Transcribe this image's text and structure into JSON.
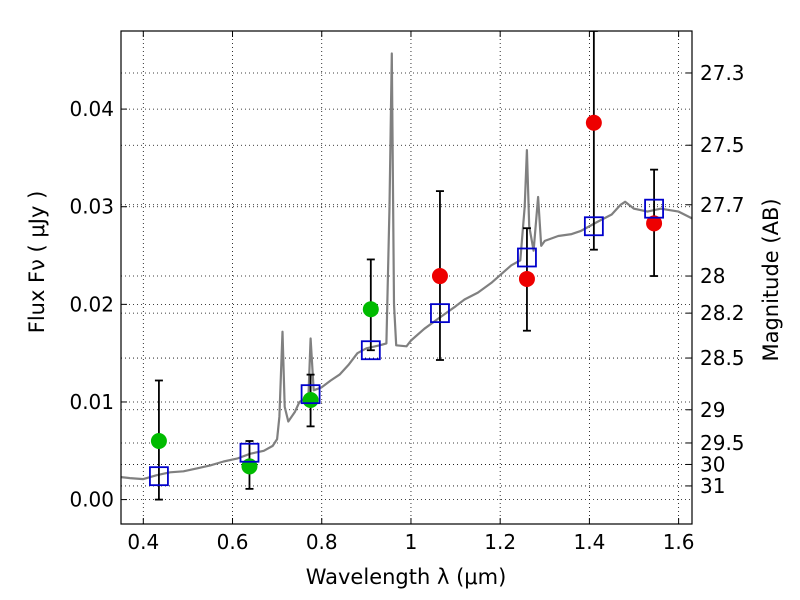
{
  "chart_data": {
    "type": "scatter",
    "xlabel": "Wavelength  λ (μm)",
    "ylabel": "Flux  Fν  ( μJy )",
    "ylabel_right": "Magnitude (AB)",
    "xlim": [
      0.35,
      1.63
    ],
    "ylim": [
      -0.0025,
      0.048
    ],
    "grid": true,
    "x_ticks": [
      0.4,
      0.6,
      0.8,
      1.0,
      1.2,
      1.4,
      1.6
    ],
    "x_tick_labels": [
      "0.4",
      "0.6",
      "0.8",
      "1",
      "1.2",
      "1.4",
      "1.6"
    ],
    "y_ticks": [
      0.0,
      0.01,
      0.02,
      0.03,
      0.04
    ],
    "y_tick_labels": [
      "0.00",
      "0.01",
      "0.02",
      "0.03",
      "0.04"
    ],
    "right_ticks": [
      {
        "label": "27.3",
        "flux": 0.0437
      },
      {
        "label": "27.5",
        "flux": 0.0363
      },
      {
        "label": "27.7",
        "flux": 0.0302
      },
      {
        "label": "28",
        "flux": 0.0229
      },
      {
        "label": "28.2",
        "flux": 0.0191
      },
      {
        "label": "28.5",
        "flux": 0.0145
      },
      {
        "label": "29",
        "flux": 0.0092
      },
      {
        "label": "29.5",
        "flux": 0.0058
      },
      {
        "label": "30",
        "flux": 0.0036
      },
      {
        "label": "31",
        "flux": 0.0014
      }
    ],
    "series": [
      {
        "kind": "line",
        "color": "#808080",
        "points": [
          [
            0.35,
            0.0023
          ],
          [
            0.37,
            0.0022
          ],
          [
            0.4,
            0.0021
          ],
          [
            0.43,
            0.0025
          ],
          [
            0.46,
            0.0028
          ],
          [
            0.49,
            0.0029
          ],
          [
            0.52,
            0.0032
          ],
          [
            0.55,
            0.0035
          ],
          [
            0.58,
            0.0039
          ],
          [
            0.61,
            0.0042
          ],
          [
            0.64,
            0.0047
          ],
          [
            0.67,
            0.005
          ],
          [
            0.69,
            0.0055
          ],
          [
            0.7,
            0.0062
          ],
          [
            0.705,
            0.0085
          ],
          [
            0.712,
            0.0172
          ],
          [
            0.717,
            0.0095
          ],
          [
            0.725,
            0.008
          ],
          [
            0.74,
            0.009
          ],
          [
            0.75,
            0.01
          ],
          [
            0.77,
            0.0105
          ],
          [
            0.775,
            0.0165
          ],
          [
            0.782,
            0.0112
          ],
          [
            0.8,
            0.0115
          ],
          [
            0.82,
            0.0122
          ],
          [
            0.84,
            0.0128
          ],
          [
            0.86,
            0.0138
          ],
          [
            0.88,
            0.015
          ],
          [
            0.9,
            0.0155
          ],
          [
            0.93,
            0.0158
          ],
          [
            0.945,
            0.016
          ],
          [
            0.952,
            0.03
          ],
          [
            0.957,
            0.0457
          ],
          [
            0.962,
            0.02
          ],
          [
            0.967,
            0.0158
          ],
          [
            0.99,
            0.0157
          ],
          [
            1.0,
            0.0163
          ],
          [
            1.03,
            0.0175
          ],
          [
            1.06,
            0.0185
          ],
          [
            1.1,
            0.0198
          ],
          [
            1.12,
            0.0205
          ],
          [
            1.15,
            0.0212
          ],
          [
            1.18,
            0.0222
          ],
          [
            1.2,
            0.023
          ],
          [
            1.225,
            0.024
          ],
          [
            1.245,
            0.0245
          ],
          [
            1.255,
            0.03
          ],
          [
            1.26,
            0.0358
          ],
          [
            1.265,
            0.028
          ],
          [
            1.275,
            0.0255
          ],
          [
            1.285,
            0.031
          ],
          [
            1.292,
            0.026
          ],
          [
            1.3,
            0.0265
          ],
          [
            1.33,
            0.027
          ],
          [
            1.36,
            0.0272
          ],
          [
            1.38,
            0.0275
          ],
          [
            1.42,
            0.0285
          ],
          [
            1.45,
            0.0292
          ],
          [
            1.47,
            0.0302
          ],
          [
            1.48,
            0.0305
          ],
          [
            1.5,
            0.0298
          ],
          [
            1.53,
            0.0295
          ],
          [
            1.56,
            0.0298
          ],
          [
            1.6,
            0.0295
          ],
          [
            1.63,
            0.0288
          ]
        ]
      },
      {
        "kind": "errorbar",
        "color": "#000000",
        "points": [
          {
            "x": 0.435,
            "lo": 0.0,
            "hi": 0.0122
          },
          {
            "x": 0.638,
            "lo": 0.0011,
            "hi": 0.006
          },
          {
            "x": 0.775,
            "lo": 0.0075,
            "hi": 0.0128
          },
          {
            "x": 0.91,
            "lo": 0.0153,
            "hi": 0.0246
          },
          {
            "x": 1.065,
            "lo": 0.0143,
            "hi": 0.0316
          },
          {
            "x": 1.26,
            "lo": 0.0173,
            "hi": 0.0278
          },
          {
            "x": 1.41,
            "lo": 0.0256,
            "hi": 0.048
          },
          {
            "x": 1.545,
            "lo": 0.0229,
            "hi": 0.0338
          }
        ]
      },
      {
        "kind": "scatter",
        "marker": "circle",
        "color": "#00bb00",
        "points": [
          [
            0.435,
            0.006
          ],
          [
            0.638,
            0.0034
          ],
          [
            0.775,
            0.0102
          ],
          [
            0.91,
            0.0195
          ]
        ]
      },
      {
        "kind": "scatter",
        "marker": "circle",
        "color": "#ee0000",
        "points": [
          [
            1.065,
            0.0229
          ],
          [
            1.26,
            0.0226
          ],
          [
            1.41,
            0.0386
          ],
          [
            1.545,
            0.0283
          ]
        ]
      },
      {
        "kind": "scatter",
        "marker": "square",
        "color": "#0000cc",
        "points": [
          [
            0.435,
            0.0024
          ],
          [
            0.638,
            0.0048
          ],
          [
            0.775,
            0.0108
          ],
          [
            0.91,
            0.0153
          ],
          [
            1.065,
            0.0191
          ],
          [
            1.26,
            0.0248
          ],
          [
            1.41,
            0.028
          ],
          [
            1.545,
            0.0298
          ]
        ]
      }
    ]
  }
}
